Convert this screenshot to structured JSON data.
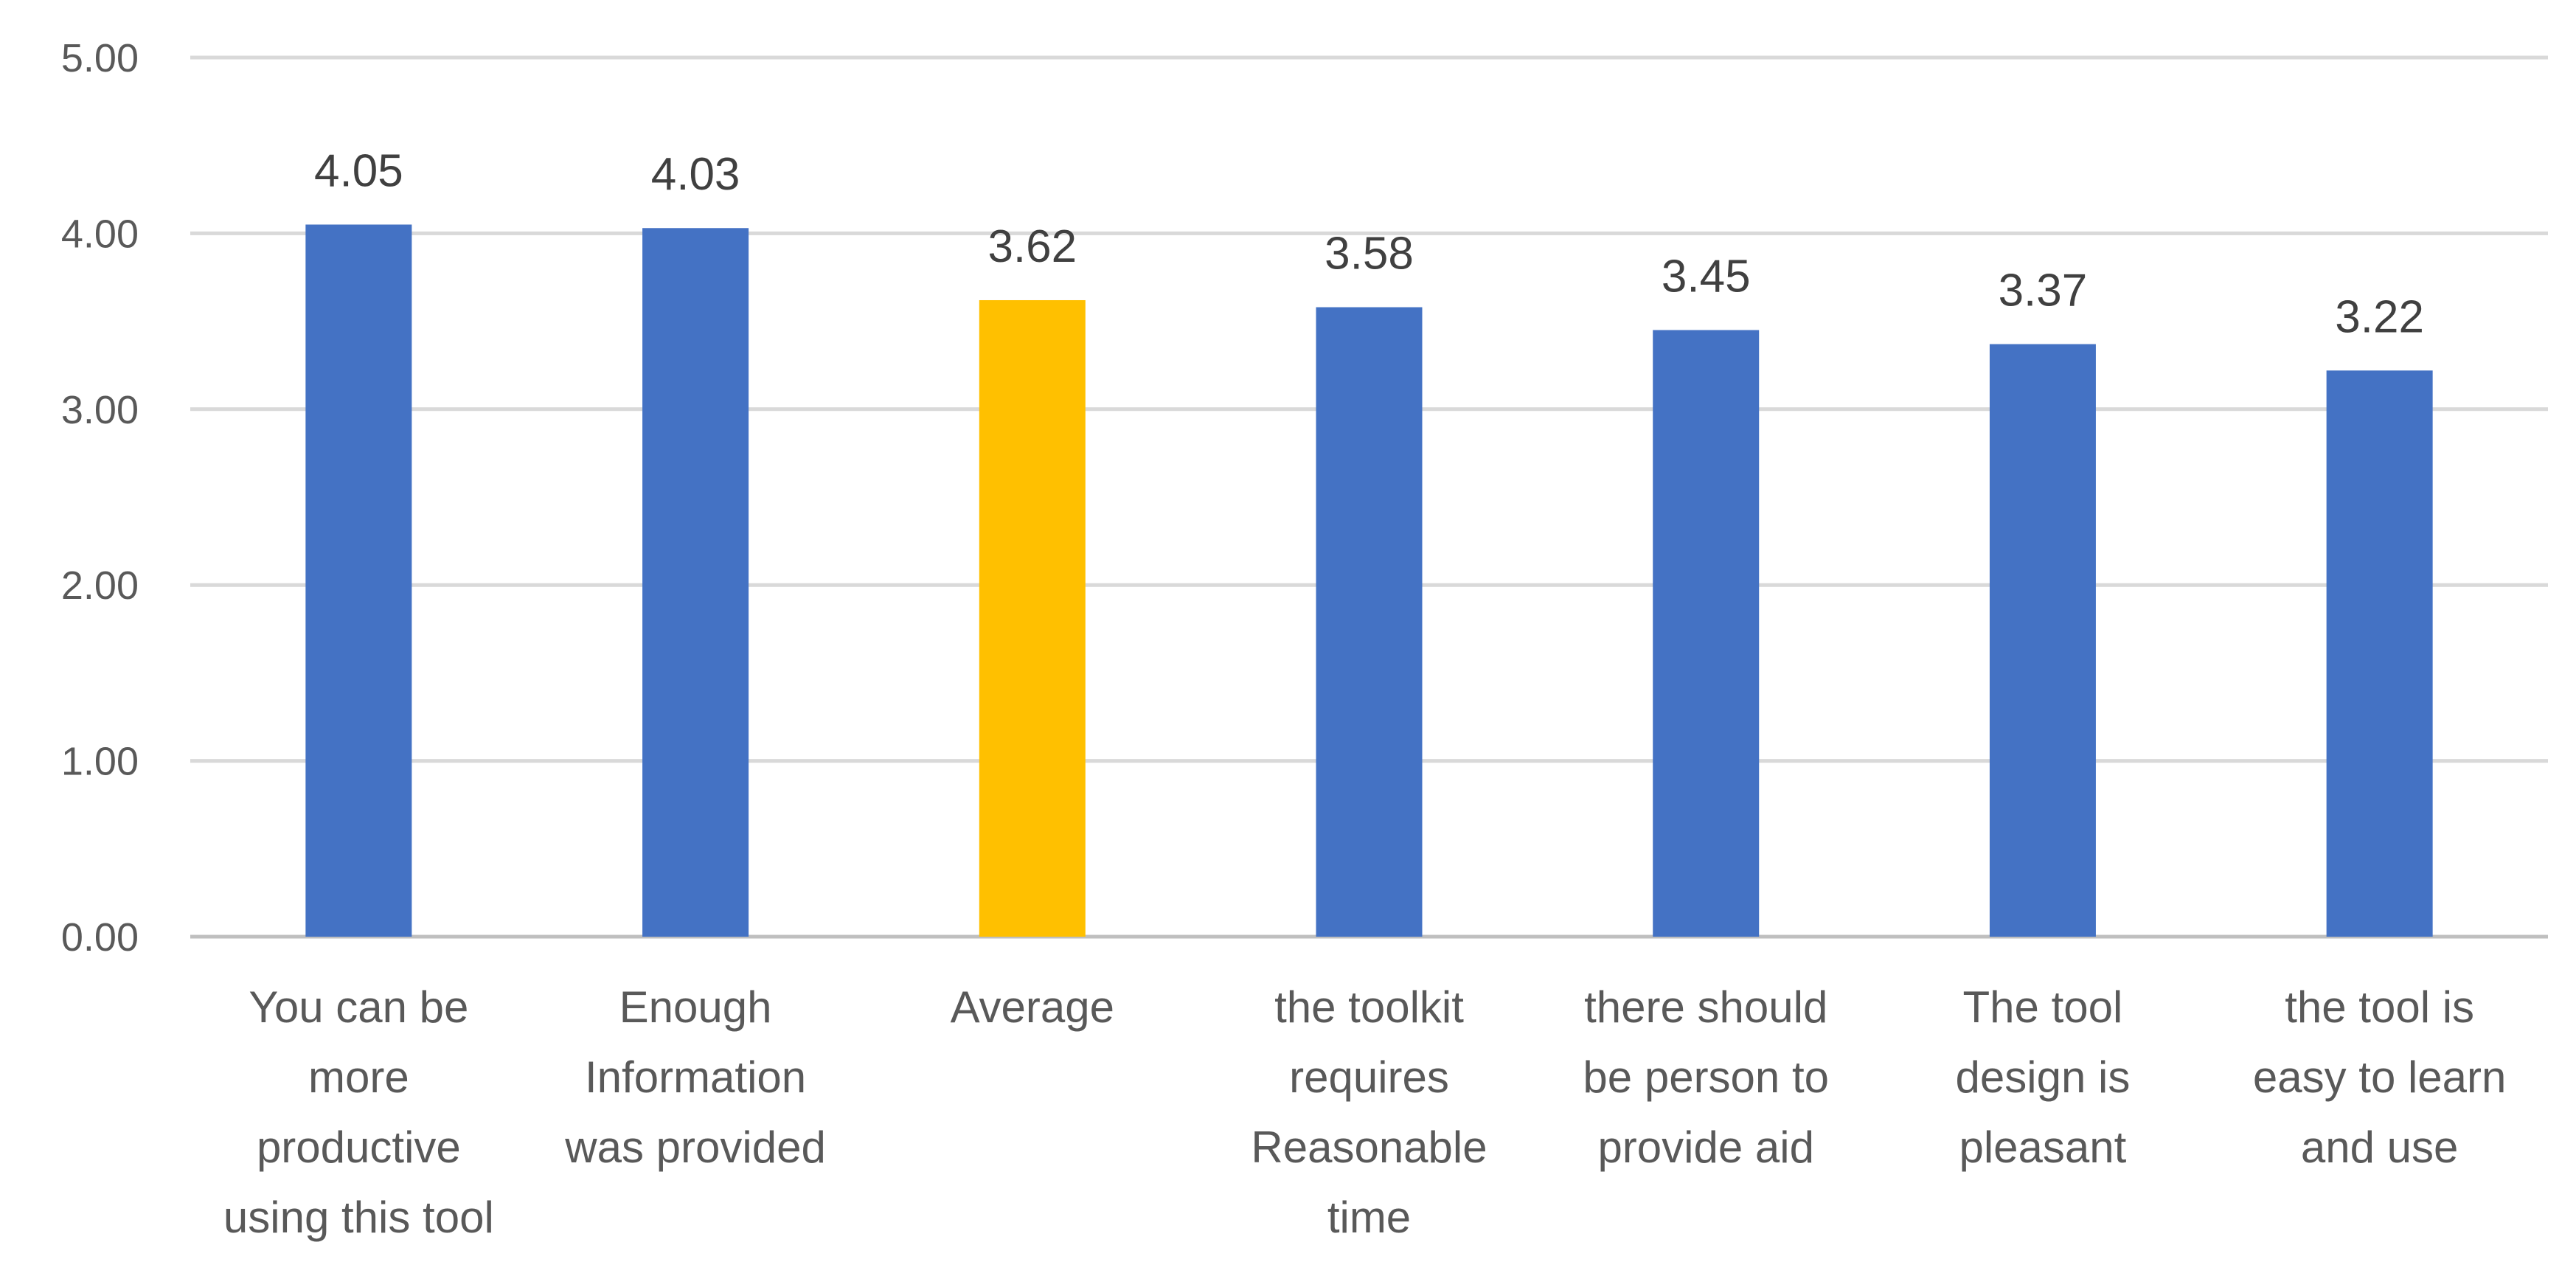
{
  "chart_data": {
    "type": "bar",
    "title": "",
    "xlabel": "",
    "ylabel": "",
    "ylim": [
      0,
      5
    ],
    "yticks": [
      0,
      1,
      2,
      3,
      4,
      5
    ],
    "ytick_labels": [
      "0.00",
      "1.00",
      "2.00",
      "3.00",
      "4.00",
      "5.00"
    ],
    "grid": true,
    "legend": "none",
    "categories": [
      [
        "You can be",
        "more",
        "productive",
        "using this tool"
      ],
      [
        "Enough",
        "Information",
        "was provided"
      ],
      [
        "Average"
      ],
      [
        "the toolkit",
        "requires",
        "Reasonable",
        "time"
      ],
      [
        "there should",
        "be person  to",
        "provide aid"
      ],
      [
        "The tool",
        "design is",
        "pleasant"
      ],
      [
        "the tool is",
        "easy to learn",
        "and use"
      ]
    ],
    "values": [
      4.05,
      4.03,
      3.62,
      3.58,
      3.45,
      3.37,
      3.22
    ],
    "value_labels": [
      "4.05",
      "4.03",
      "3.62",
      "3.58",
      "3.45",
      "3.37",
      "3.22"
    ],
    "colors": [
      "#4472c4",
      "#4472c4",
      "#ffc000",
      "#4472c4",
      "#4472c4",
      "#4472c4",
      "#4472c4"
    ]
  }
}
